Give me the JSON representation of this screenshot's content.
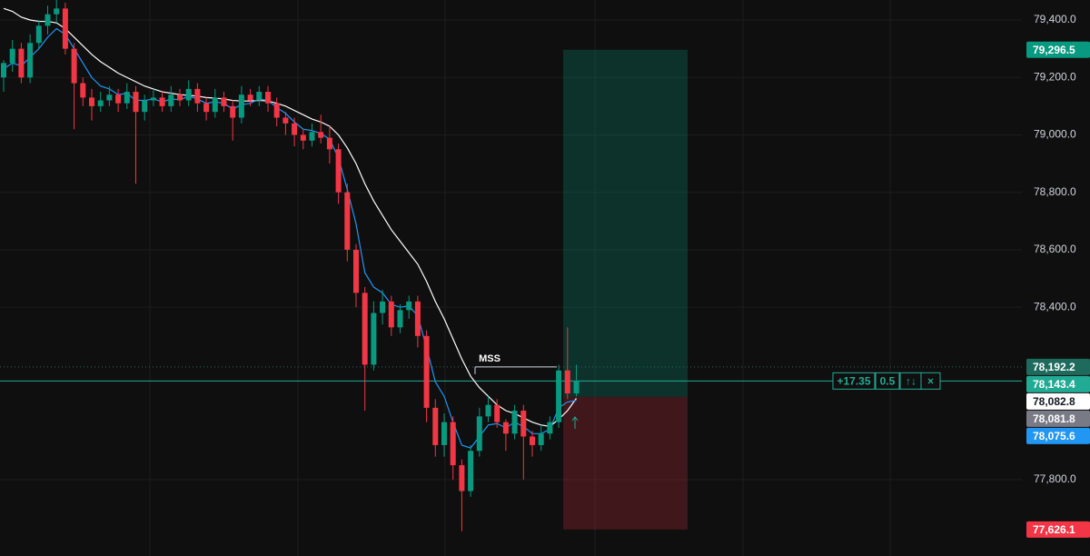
{
  "chart_data": {
    "type": "candlestick",
    "up_color": "#089981",
    "down_color": "#f23645",
    "ylim": [
      77534,
      79469.6
    ],
    "yticks": [
      {
        "value": 77800,
        "label": "77,800.0"
      },
      {
        "value": 78400,
        "label": "78,400.0"
      },
      {
        "value": 78600,
        "label": "78,600.0"
      },
      {
        "value": 78800,
        "label": "78,800.0"
      },
      {
        "value": 79000,
        "label": "79,000.0"
      },
      {
        "value": 79200,
        "label": "79,200.0"
      },
      {
        "value": 79400,
        "label": "79,400.0"
      }
    ],
    "ohlc": [
      [
        79200,
        79260,
        79150,
        79250
      ],
      [
        79250,
        79330,
        79220,
        79300
      ],
      [
        79300,
        79320,
        79180,
        79200
      ],
      [
        79200,
        79350,
        79180,
        79320
      ],
      [
        79320,
        79400,
        79300,
        79380
      ],
      [
        79380,
        79450,
        79350,
        79420
      ],
      [
        79420,
        79470,
        79390,
        79440
      ],
      [
        79440,
        79460,
        79280,
        79300
      ],
      [
        79300,
        79320,
        79020,
        79180
      ],
      [
        79180,
        79200,
        79100,
        79130
      ],
      [
        79130,
        79160,
        79050,
        79100
      ],
      [
        79100,
        79150,
        79080,
        79120
      ],
      [
        79120,
        79170,
        79100,
        79140
      ],
      [
        79140,
        79160,
        79080,
        79110
      ],
      [
        79110,
        79180,
        79090,
        79150
      ],
      [
        79150,
        79170,
        78830,
        79080
      ],
      [
        79080,
        79140,
        79050,
        79120
      ],
      [
        79120,
        79160,
        79100,
        79130
      ],
      [
        79130,
        79150,
        79080,
        79100
      ],
      [
        79100,
        79170,
        79080,
        79140
      ],
      [
        79140,
        79160,
        79100,
        79120
      ],
      [
        79120,
        79190,
        79100,
        79160
      ],
      [
        79160,
        79180,
        79080,
        79110
      ],
      [
        79110,
        79130,
        79050,
        79080
      ],
      [
        79080,
        79160,
        79060,
        79130
      ],
      [
        79130,
        79150,
        79080,
        79100
      ],
      [
        79100,
        79120,
        78980,
        79060
      ],
      [
        79060,
        79170,
        79040,
        79140
      ],
      [
        79140,
        79160,
        79100,
        79120
      ],
      [
        79120,
        79170,
        79100,
        79150
      ],
      [
        79150,
        79170,
        79080,
        79110
      ],
      [
        79110,
        79130,
        79030,
        79060
      ],
      [
        79060,
        79080,
        79000,
        79040
      ],
      [
        79040,
        79060,
        78960,
        79000
      ],
      [
        79000,
        79020,
        78950,
        78980
      ],
      [
        78980,
        79040,
        78960,
        79010
      ],
      [
        79010,
        79070,
        78970,
        78990
      ],
      [
        78990,
        79030,
        78900,
        78950
      ],
      [
        78950,
        78970,
        78760,
        78800
      ],
      [
        78800,
        78830,
        78560,
        78600
      ],
      [
        78600,
        78620,
        78400,
        78450
      ],
      [
        78450,
        78470,
        78040,
        78200
      ],
      [
        78200,
        78420,
        78180,
        78380
      ],
      [
        78380,
        78460,
        78340,
        78420
      ],
      [
        78420,
        78440,
        78300,
        78330
      ],
      [
        78330,
        78410,
        78310,
        78390
      ],
      [
        78390,
        78440,
        78360,
        78420
      ],
      [
        78420,
        78440,
        78260,
        78300
      ],
      [
        78300,
        78320,
        78000,
        78050
      ],
      [
        78050,
        78080,
        77880,
        77920
      ],
      [
        77920,
        78030,
        77880,
        78000
      ],
      [
        78000,
        78020,
        77800,
        77850
      ],
      [
        77850,
        77870,
        77620,
        77760
      ],
      [
        77760,
        77920,
        77740,
        77900
      ],
      [
        77900,
        78050,
        77880,
        78020
      ],
      [
        78020,
        78090,
        78000,
        78060
      ],
      [
        78060,
        78080,
        77980,
        78000
      ],
      [
        78000,
        78010,
        77900,
        77960
      ],
      [
        77960,
        78060,
        77940,
        78040
      ],
      [
        78040,
        78060,
        77800,
        77950
      ],
      [
        77950,
        77970,
        77880,
        77920
      ],
      [
        77920,
        77990,
        77900,
        77960
      ],
      [
        77960,
        78020,
        77940,
        78000
      ],
      [
        78000,
        78200,
        77980,
        78180
      ],
      [
        78180,
        78330,
        78080,
        78100
      ],
      [
        78100,
        78200,
        78090,
        78143.4
      ]
    ],
    "series": [
      {
        "color": "#ffffff",
        "values": [
          79440,
          79430,
          79410,
          79400,
          79395,
          79395,
          79390,
          79370,
          79340,
          79310,
          79280,
          79255,
          79235,
          79215,
          79200,
          79185,
          79170,
          79160,
          79150,
          79145,
          79140,
          79138,
          79135,
          79130,
          79128,
          79125,
          79120,
          79118,
          79118,
          79120,
          79118,
          79110,
          79100,
          79085,
          79070,
          79055,
          79045,
          79030,
          79000,
          78955,
          78900,
          78830,
          78770,
          78720,
          78670,
          78630,
          78590,
          78550,
          78490,
          78420,
          78360,
          78290,
          78220,
          78160,
          78120,
          78090,
          78060,
          78040,
          78030,
          78015,
          78000,
          77990,
          77985,
          78010,
          78040,
          78082.8
        ]
      },
      {
        "color": "#2196f3",
        "values": [
          79230,
          79250,
          79240,
          79270,
          79300,
          79340,
          79370,
          79350,
          79300,
          79250,
          79200,
          79170,
          79160,
          79140,
          79145,
          79120,
          79120,
          79125,
          79115,
          79125,
          79122,
          79135,
          79125,
          79110,
          79115,
          79110,
          79090,
          79105,
          79110,
          79125,
          79120,
          79095,
          79075,
          79045,
          79020,
          79015,
          79005,
          78985,
          78920,
          78810,
          78690,
          78520,
          78470,
          78450,
          78410,
          78400,
          78405,
          78370,
          78260,
          78140,
          78090,
          78000,
          77920,
          77910,
          77950,
          77990,
          77995,
          77980,
          78000,
          77985,
          77960,
          77960,
          77975,
          78050,
          78070,
          78075.6
        ]
      }
    ],
    "price_labels": [
      {
        "value": 79296.5,
        "label": "79,296.5",
        "color": "#089981"
      },
      {
        "value": 78192.2,
        "label": "78,192.2",
        "color": "#1e6b5e"
      },
      {
        "value": 78143.4,
        "label": "78,143.4",
        "color": "#22ab94"
      },
      {
        "value": 78082.8,
        "label": "78,082.8",
        "color": "#ffffff"
      },
      {
        "value": 78081.8,
        "label": "78,081.8",
        "color": "#787b86"
      },
      {
        "value": 78075.6,
        "label": "78,075.6",
        "color": "#2196f3"
      },
      {
        "value": 77626.1,
        "label": "77,626.1",
        "color": "#f23645"
      }
    ],
    "position": {
      "entry": 78088
    },
    "annotation": {
      "text": "MSS"
    },
    "trade_widget": {
      "pnl": "+17.35",
      "qty": "0.5",
      "reverse": "↑↓",
      "close": "×"
    }
  }
}
